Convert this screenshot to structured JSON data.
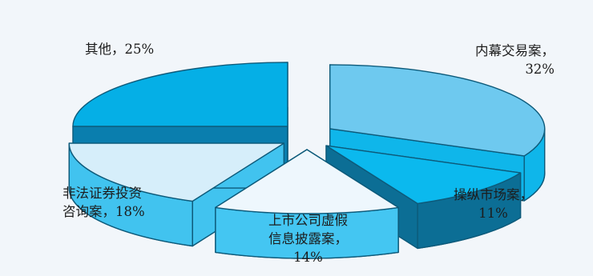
{
  "chart_data": {
    "type": "pie",
    "style": "exploded-3d",
    "slices": [
      {
        "key": "s1",
        "label_lines": [
          "内幕交易案，",
          "32%"
        ],
        "value": 32,
        "top_color": "#6ec9ef",
        "side_color": "#0fb6ea"
      },
      {
        "key": "s2",
        "label_lines": [
          "操纵市场案，",
          "11%"
        ],
        "value": 11,
        "top_color": "#0bb9ee",
        "side_color": "#0c6e95"
      },
      {
        "key": "s3",
        "label_lines": [
          "上市公司虚假",
          "信息披露案，",
          "14%"
        ],
        "value": 14,
        "top_color": "#eef7fd",
        "side_color": "#44c6f2"
      },
      {
        "key": "s4",
        "label_lines": [
          "非法证券投资",
          "咨询案，18%"
        ],
        "value": 18,
        "top_color": "#d6eefa",
        "side_color": "#41c3ef"
      },
      {
        "key": "s5",
        "label_lines": [
          "其他，25%"
        ],
        "value": 25,
        "top_color": "#05afe6",
        "side_color": "#0a7eae"
      }
    ]
  }
}
